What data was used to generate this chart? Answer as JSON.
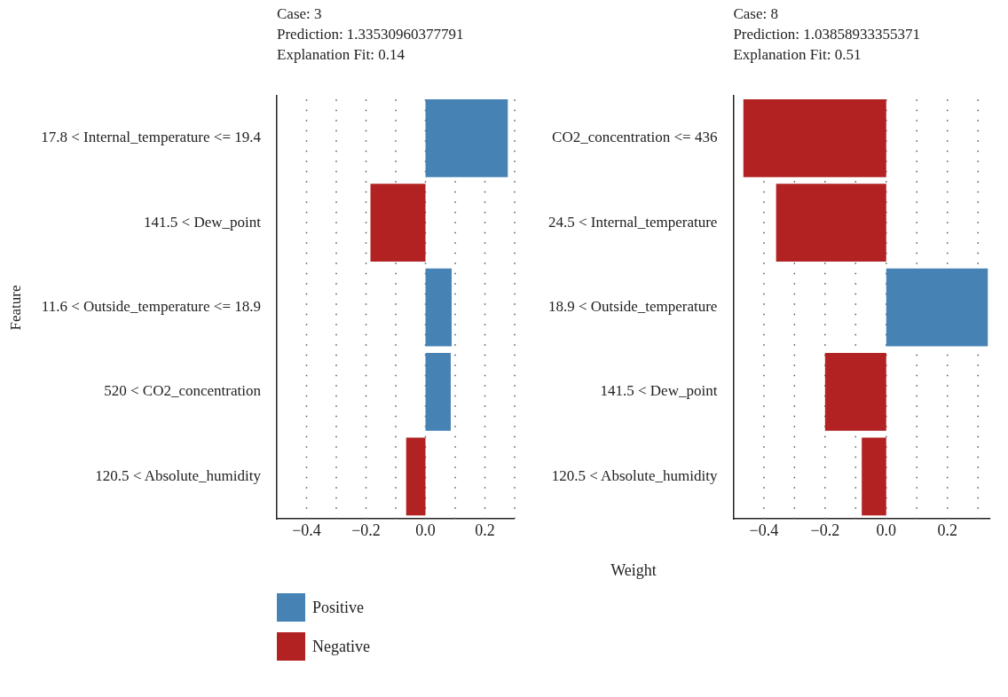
{
  "chart_data": [
    {
      "type": "bar",
      "orientation": "horizontal",
      "stacked": true,
      "title": "Case: 3",
      "subtitle": "Prediction: 1.33530960377791",
      "annotations": [
        "Explanation Fit: 0.14"
      ],
      "ylabel": "Feature",
      "categories": [
        "17.8 < Internal_temperature <= 19.4",
        "141.5 < Dew_point",
        "11.6 < Outside_temperature <= 18.9",
        "520 < CO2_concentration",
        "120.5 < Absolute_humidity"
      ],
      "series": [
        {
          "name": "Positive",
          "color": "#4682b4",
          "values": [
            0.277,
            null,
            0.088,
            0.085,
            null
          ]
        },
        {
          "name": "Negative",
          "color": "#b22222",
          "values": [
            null,
            -0.185,
            null,
            null,
            -0.065
          ]
        }
      ],
      "xlim": [
        -0.5,
        0.3
      ],
      "xticks": [
        {
          "value": -0.4,
          "label": "−0.4"
        },
        {
          "value": -0.3,
          "label": null
        },
        {
          "value": -0.2,
          "label": "−0.2"
        },
        {
          "value": -0.1,
          "label": null
        },
        {
          "value": 0,
          "label": "0.0"
        },
        {
          "value": 0.1,
          "label": null
        },
        {
          "value": 0.2,
          "label": "0.2"
        },
        {
          "value": 0.3,
          "label": null
        }
      ],
      "grid": "x",
      "legend": "bottom left"
    },
    {
      "type": "bar",
      "orientation": "horizontal",
      "stacked": true,
      "title": "Case: 8",
      "subtitle": "Prediction: 1.03858933355371",
      "annotations": [
        "Explanation Fit: 0.51"
      ],
      "xlabel": "Weight",
      "categories": [
        "CO2_concentration <= 436",
        "24.5 < Internal_temperature",
        "18.9 < Outside_temperature",
        "141.5 < Dew_point",
        "120.5 < Absolute_humidity"
      ],
      "series": [
        {
          "color": "#4682b4",
          "values": [
            null,
            null,
            0.332,
            null,
            null
          ]
        },
        {
          "color": "#b22222",
          "values": [
            -0.467,
            -0.36,
            null,
            -0.2,
            -0.08
          ]
        }
      ],
      "xlim": [
        -0.5,
        0.34
      ],
      "xticks": [
        {
          "value": -0.4,
          "label": "−0.4"
        },
        {
          "value": -0.3,
          "label": null
        },
        {
          "value": -0.2,
          "label": "−0.2"
        },
        {
          "value": -0.1,
          "label": null
        },
        {
          "value": 0,
          "label": "0.0"
        },
        {
          "value": 0.1,
          "label": null
        },
        {
          "value": 0.2,
          "label": "0.2"
        },
        {
          "value": 0.3,
          "label": null
        }
      ],
      "grid": "x",
      "legend": false
    }
  ]
}
